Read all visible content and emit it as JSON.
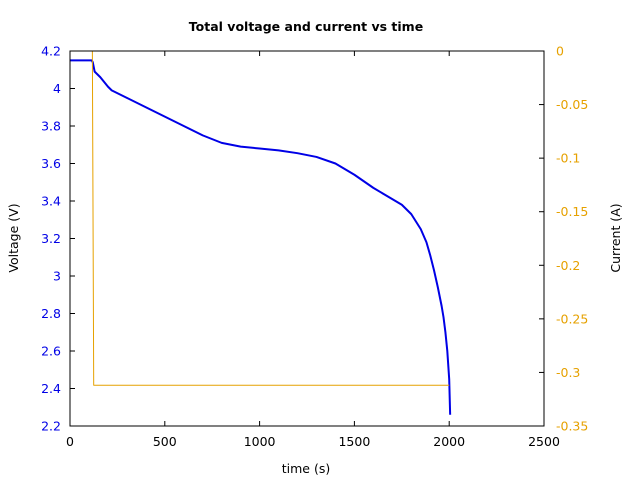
{
  "chart_data": {
    "type": "line",
    "title": "Total voltage and current vs time",
    "xlabel": "time (s)",
    "ylabel": "Voltage (V)",
    "y2label": "Current (A)",
    "xlim": [
      0,
      2500
    ],
    "ylim": [
      2.2,
      4.2
    ],
    "y2lim": [
      -0.35,
      0
    ],
    "xticks": [
      0,
      500,
      1000,
      1500,
      2000,
      2500
    ],
    "yticks": [
      2.2,
      2.4,
      2.6,
      2.8,
      3,
      3.2,
      3.4,
      3.6,
      3.8,
      4,
      4.2
    ],
    "y2ticks": [
      -0.35,
      -0.3,
      -0.25,
      -0.2,
      -0.15,
      -0.1,
      -0.05,
      0
    ],
    "grid": false,
    "legend": "none",
    "colors": {
      "voltage": "#0000e6",
      "current": "#e6a100",
      "axis": "#000000"
    },
    "series": [
      {
        "axis": "left",
        "color": "#0000e6",
        "x": [
          0,
          115,
          120,
          130,
          160,
          200,
          220,
          300,
          400,
          500,
          600,
          700,
          800,
          900,
          1000,
          1100,
          1200,
          1300,
          1400,
          1500,
          1600,
          1700,
          1750,
          1800,
          1850,
          1880,
          1900,
          1920,
          1940,
          1960,
          1970,
          1980,
          1990,
          2000,
          2005
        ],
        "values": [
          4.15,
          4.15,
          4.14,
          4.09,
          4.06,
          4.01,
          3.99,
          3.95,
          3.9,
          3.85,
          3.8,
          3.75,
          3.71,
          3.69,
          3.68,
          3.67,
          3.655,
          3.635,
          3.6,
          3.54,
          3.47,
          3.41,
          3.38,
          3.33,
          3.25,
          3.18,
          3.11,
          3.03,
          2.94,
          2.84,
          2.78,
          2.7,
          2.6,
          2.45,
          2.26
        ]
      },
      {
        "axis": "right",
        "color": "#e6a100",
        "x": [
          110,
          118,
          125,
          2000
        ],
        "values": [
          0,
          0,
          -0.312,
          -0.312
        ]
      }
    ]
  }
}
